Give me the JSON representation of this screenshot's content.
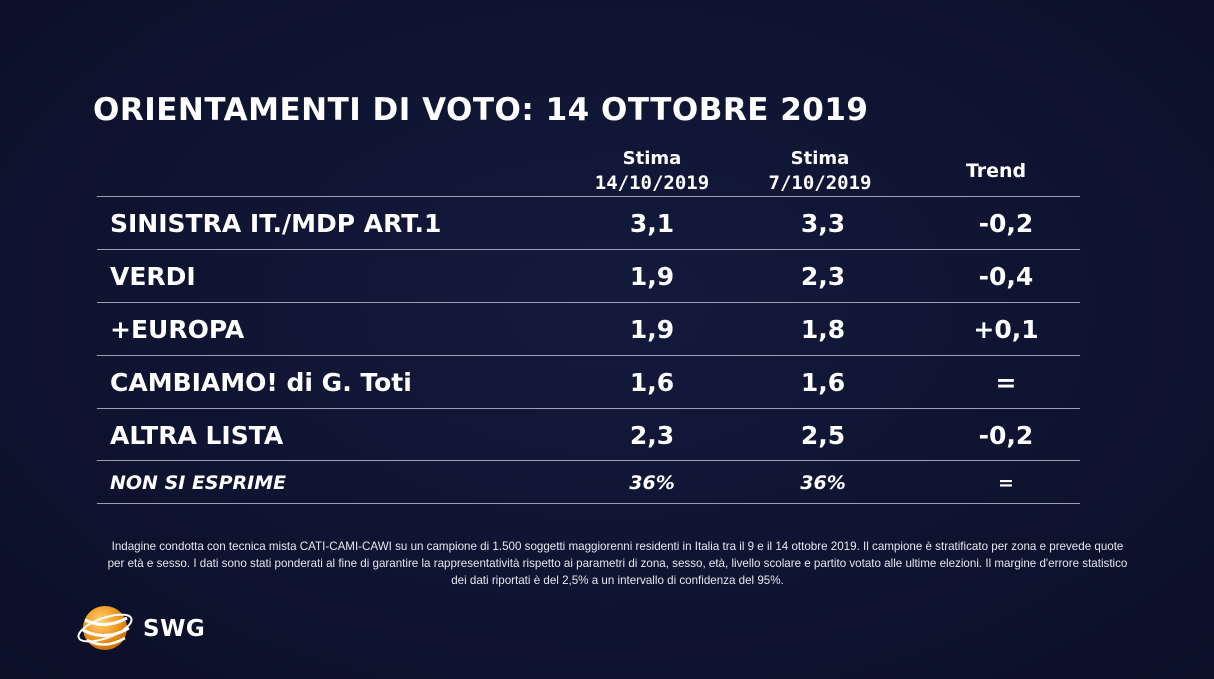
{
  "title": "ORIENTAMENTI DI VOTO: 14 OTTOBRE 2019",
  "headers": {
    "col1_line1": "Stima",
    "col1_line2": "14/10/2019",
    "col2_line1": "Stima",
    "col2_line2": "7/10/2019",
    "col3": "Trend"
  },
  "rows": [
    {
      "party": "SINISTRA IT./MDP ART.1",
      "current": "3,1",
      "previous": "3,3",
      "trend": "-0,2"
    },
    {
      "party": "VERDI",
      "current": "1,9",
      "previous": "2,3",
      "trend": "-0,4"
    },
    {
      "party": "+EUROPA",
      "current": "1,9",
      "previous": "1,8",
      "trend": "+0,1"
    },
    {
      "party": "CAMBIAMO! di G. Toti",
      "current": "1,6",
      "previous": "1,6",
      "trend": "="
    },
    {
      "party": "ALTRA LISTA",
      "current": "2,3",
      "previous": "2,5",
      "trend": "-0,2"
    },
    {
      "party": "NON SI ESPRIME",
      "current": "36%",
      "previous": "36%",
      "trend": "="
    }
  ],
  "footnote": "Indagine condotta con tecnica mista CATI-CAMI-CAWI su un campione di 1.500 soggetti maggiorenni residenti in Italia tra il 9 e il 14 ottobre 2019. Il campione è stratificato per zona e prevede quote per età e sesso. I dati sono stati ponderati al fine di garantire la rappresentatività rispetto ai parametri di zona, sesso, età, livello scolare e partito votato alle ultime elezioni. Il margine d'errore statistico dei dati riportati è del 2,5% a un intervallo di confidenza del 95%.",
  "logo": {
    "text": "SWG",
    "icon": "globe-icon"
  },
  "colors": {
    "background": "#0e1330",
    "text": "#ffffff",
    "rule": "#9aa0b8",
    "logo_orange": "#f29a1f"
  },
  "chart_data": {
    "type": "table",
    "title": "ORIENTAMENTI DI VOTO: 14 OTTOBRE 2019",
    "columns": [
      "",
      "Stima 14/10/2019",
      "Stima 7/10/2019",
      "Trend"
    ],
    "rows": [
      [
        "SINISTRA IT./MDP ART.1",
        "3,1",
        "3,3",
        "-0,2"
      ],
      [
        "VERDI",
        "1,9",
        "2,3",
        "-0,4"
      ],
      [
        "+EUROPA",
        "1,9",
        "1,8",
        "+0,1"
      ],
      [
        "CAMBIAMO! di G. Toti",
        "1,6",
        "1,6",
        "="
      ],
      [
        "ALTRA LISTA",
        "2,3",
        "2,5",
        "-0,2"
      ],
      [
        "NON SI ESPRIME",
        "36%",
        "36%",
        "="
      ]
    ]
  }
}
